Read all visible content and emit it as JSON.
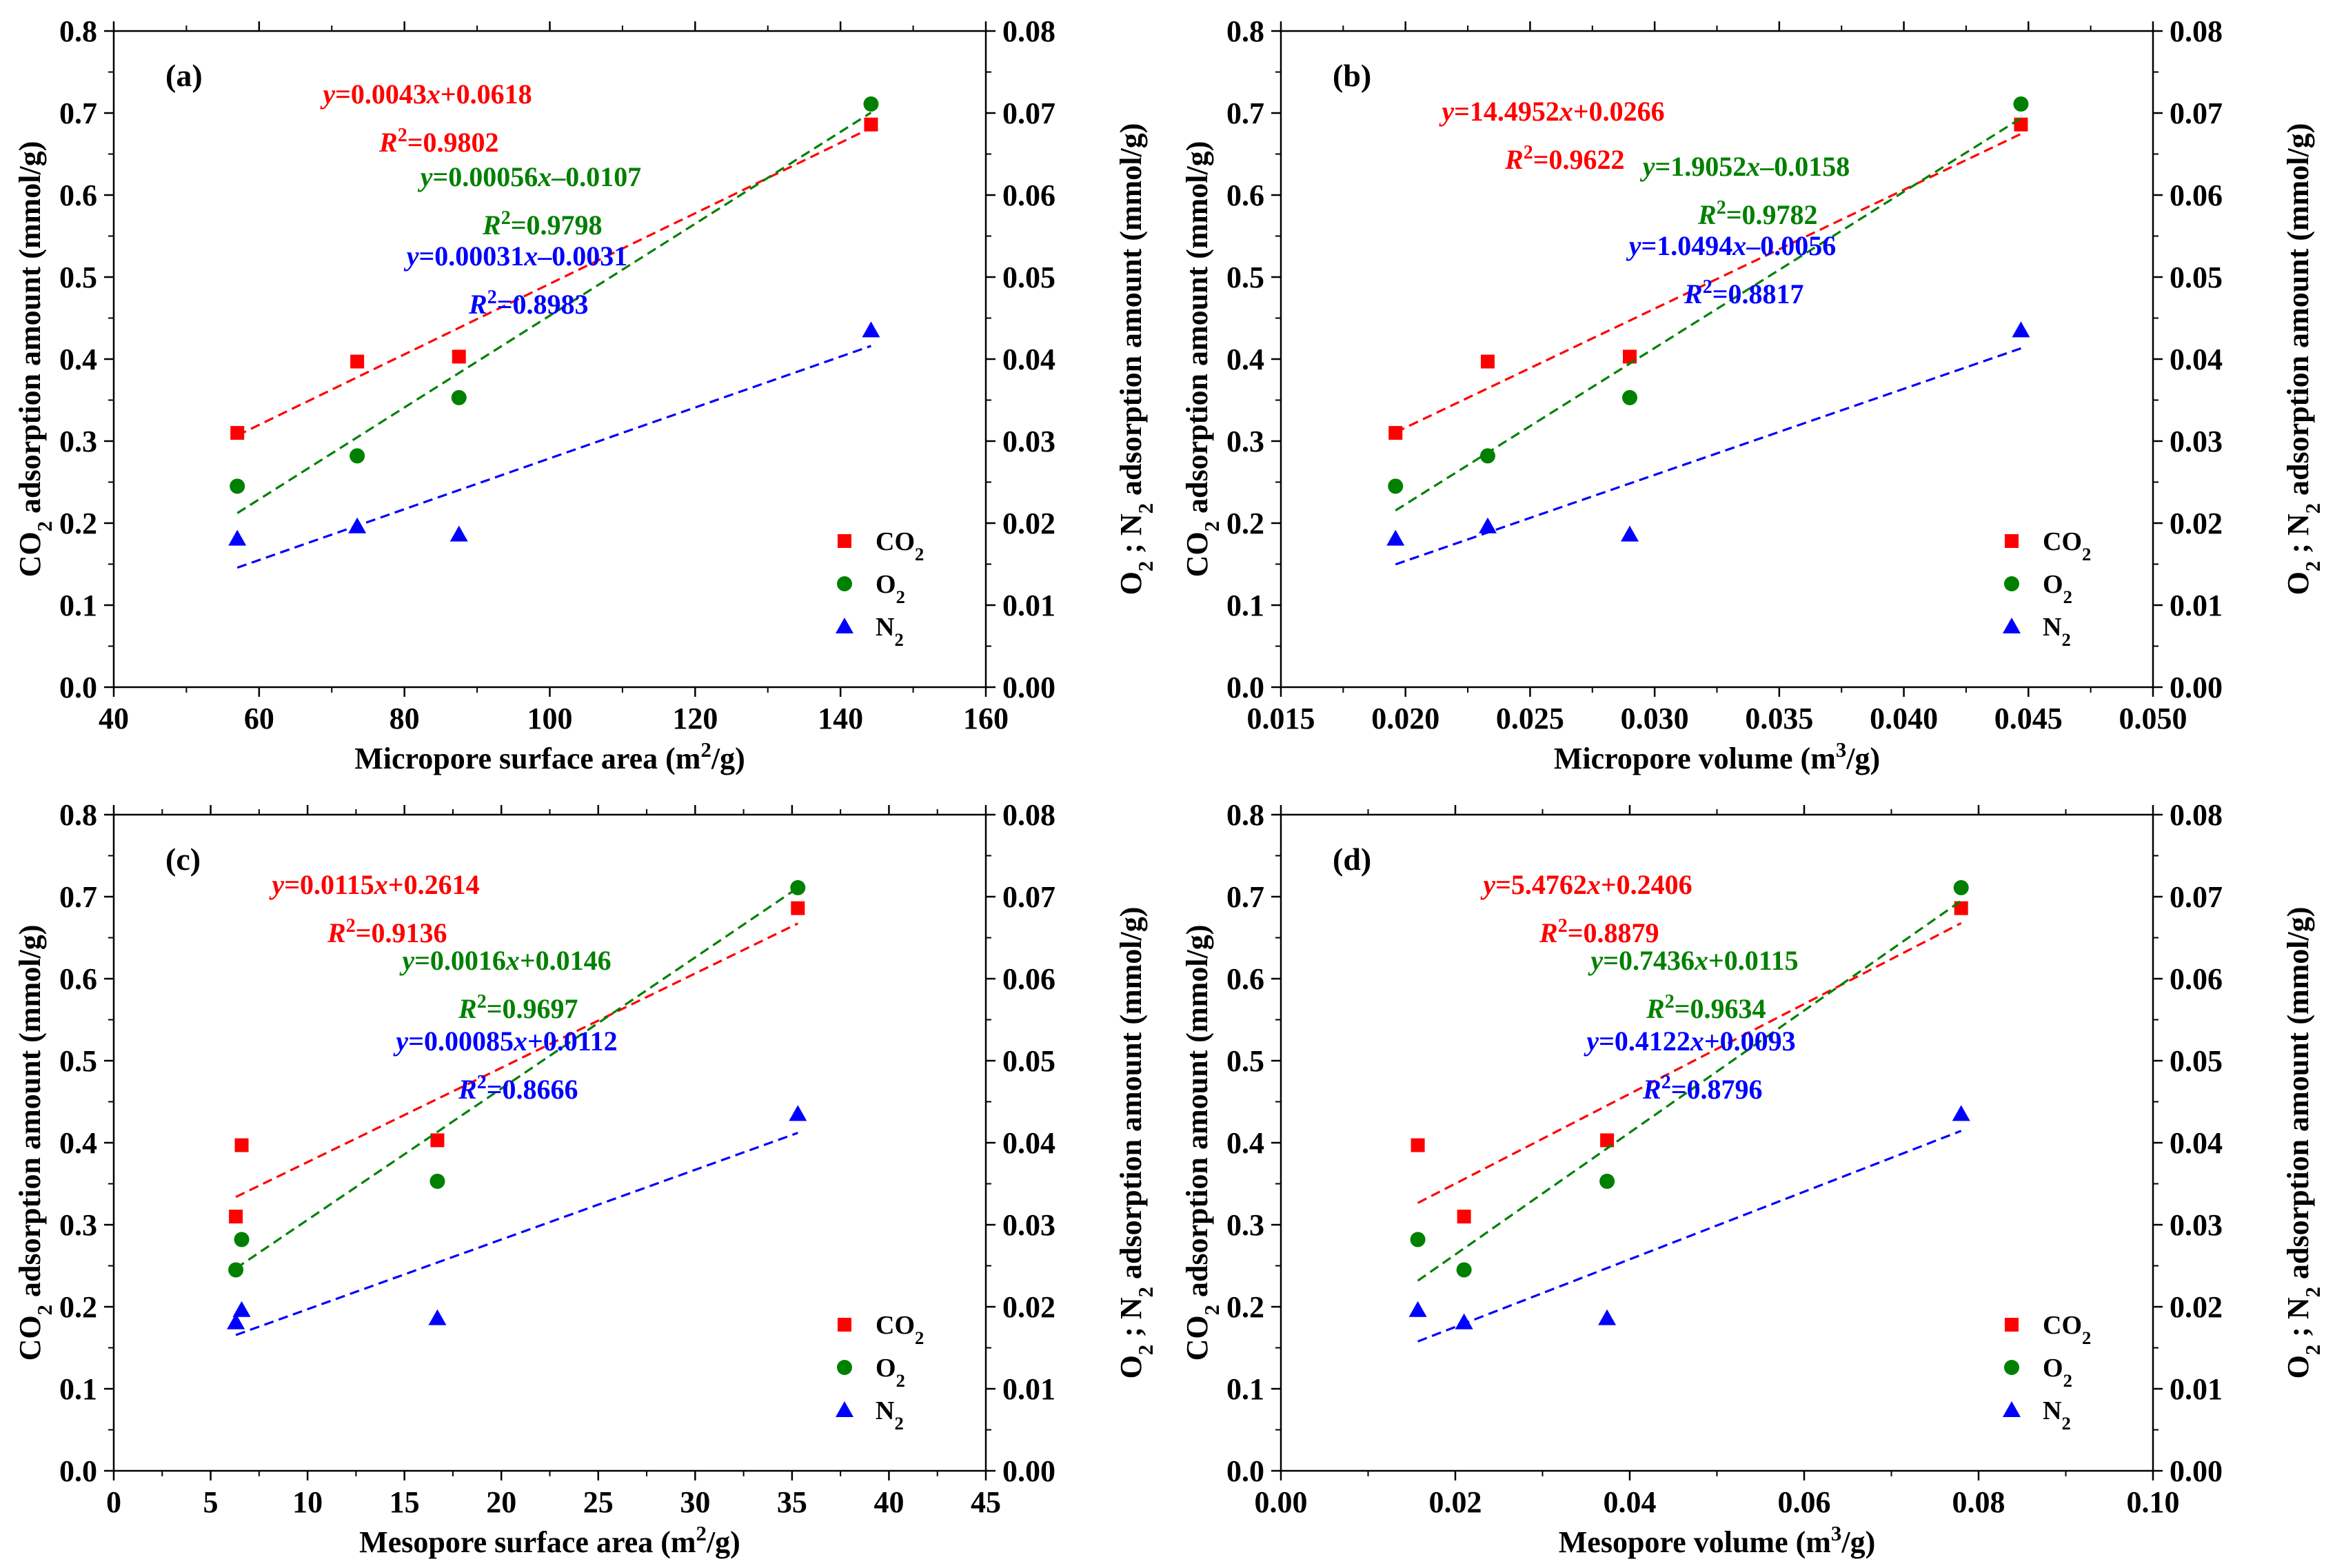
{
  "figure": {
    "colors": {
      "co2": "#ff0000",
      "o2": "#008000",
      "n2": "#0000ff",
      "axis": "#000000"
    },
    "legend": {
      "co2": "CO2",
      "o2": "O2",
      "n2": "N2",
      "placement": "bottom-right"
    },
    "marker_shapes": {
      "co2": "square",
      "o2": "circle",
      "n2": "triangle"
    }
  },
  "chart_data": [
    {
      "type": "scatter",
      "panel_label": "(a)",
      "xlabel": "Micropore surface area (m2/g)",
      "ylabel_left": "CO2 adsorption amount (mmol/g)",
      "ylabel_right": "O2 ; N2 adsorption amount (mmol/g)",
      "xlim": [
        40,
        160
      ],
      "xticks": [
        40,
        60,
        80,
        100,
        120,
        140,
        160
      ],
      "xtick_labels": [
        "40",
        "60",
        "80",
        "100",
        "120",
        "140",
        "160"
      ],
      "ylim_left": [
        0,
        0.8
      ],
      "ylim_right": [
        0,
        0.08
      ],
      "grid": false,
      "series": [
        {
          "name": "CO2",
          "axis": "left",
          "x": [
            57,
            73.5,
            87.5,
            144.2
          ],
          "y": [
            0.31,
            0.397,
            0.403,
            0.686
          ],
          "fit": {
            "slope": 0.0043,
            "intercept": 0.0618,
            "x_range": [
              57,
              144.2
            ]
          },
          "equation": "y=0.0043x+0.0618",
          "r2": "R2=0.9802"
        },
        {
          "name": "O2",
          "axis": "right",
          "x": [
            57,
            73.5,
            87.5,
            144.2
          ],
          "y": [
            0.0245,
            0.0282,
            0.0353,
            0.0711
          ],
          "fit": {
            "slope": 0.00056,
            "intercept": -0.0107,
            "x_range": [
              57,
              144.2
            ]
          },
          "equation": "y=0.00056x–0.0107",
          "r2": "R2=0.9798"
        },
        {
          "name": "N2",
          "axis": "right",
          "x": [
            57,
            73.5,
            87.5,
            144.2
          ],
          "y": [
            0.0181,
            0.0196,
            0.0186,
            0.0435
          ],
          "fit": {
            "slope": 0.00031,
            "intercept": -0.0031,
            "x_range": [
              57,
              144.2
            ]
          },
          "equation": "y=0.00031x–0.0031",
          "r2": "R2=0.8983"
        }
      ]
    },
    {
      "type": "scatter",
      "panel_label": "(b)",
      "xlabel": "Micropore volume (m3/g)",
      "ylabel_left": "CO2 adsorption amount (mmol/g)",
      "ylabel_right": "O2 ; N2 adsorption amount (mmol/g)",
      "xlim": [
        0.015,
        0.05
      ],
      "xticks": [
        0.015,
        0.02,
        0.025,
        0.03,
        0.035,
        0.04,
        0.045,
        0.05
      ],
      "xtick_labels": [
        "0.015",
        "0.020",
        "0.025",
        "0.030",
        "0.035",
        "0.040",
        "0.045",
        "0.050"
      ],
      "ylim_left": [
        0,
        0.8
      ],
      "ylim_right": [
        0,
        0.08
      ],
      "grid": false,
      "series": [
        {
          "name": "CO2",
          "axis": "left",
          "x": [
            0.0196,
            0.0233,
            0.029,
            0.0447
          ],
          "y": [
            0.31,
            0.397,
            0.403,
            0.686
          ],
          "fit": {
            "slope": 14.4952,
            "intercept": 0.0266,
            "x_range": [
              0.0196,
              0.0447
            ]
          },
          "equation": "y=14.4952x+0.0266",
          "r2": "R2=0.9622"
        },
        {
          "name": "O2",
          "axis": "right",
          "x": [
            0.0196,
            0.0233,
            0.029,
            0.0447
          ],
          "y": [
            0.0245,
            0.0282,
            0.0353,
            0.0711
          ],
          "fit": {
            "slope": 1.9052,
            "intercept": -0.0158,
            "x_range": [
              0.0196,
              0.0447
            ]
          },
          "equation": "y=1.9052x–0.0158",
          "r2": "R2=0.9782"
        },
        {
          "name": "N2",
          "axis": "right",
          "x": [
            0.0196,
            0.0233,
            0.029,
            0.0447
          ],
          "y": [
            0.0181,
            0.0196,
            0.0186,
            0.0435
          ],
          "fit": {
            "slope": 1.0494,
            "intercept": -0.0056,
            "x_range": [
              0.0196,
              0.0447
            ]
          },
          "equation": "y=1.0494x–0.0056",
          "r2": "R2=0.8817"
        }
      ]
    },
    {
      "type": "scatter",
      "panel_label": "(c)",
      "xlabel": "Mesopore surface area (m2/g)",
      "ylabel_left": "CO2 adsorption amount (mmol/g)",
      "ylabel_right": "O2 ; N2 adsorption amount (mmol/g)",
      "xlim": [
        0,
        45
      ],
      "xticks": [
        0,
        5,
        10,
        15,
        20,
        25,
        30,
        35,
        40,
        45
      ],
      "xtick_labels": [
        "0",
        "5",
        "10",
        "15",
        "20",
        "25",
        "30",
        "35",
        "40",
        "45"
      ],
      "ylim_left": [
        0,
        0.8
      ],
      "ylim_right": [
        0,
        0.08
      ],
      "grid": false,
      "series": [
        {
          "name": "CO2",
          "axis": "left",
          "x": [
            6.3,
            6.6,
            16.7,
            35.3
          ],
          "y": [
            0.31,
            0.397,
            0.403,
            0.686
          ],
          "fit": {
            "slope": 0.0115,
            "intercept": 0.2614,
            "x_range": [
              6.3,
              35.3
            ]
          },
          "equation": "y=0.0115x+0.2614",
          "r2": "R2=0.9136"
        },
        {
          "name": "O2",
          "axis": "right",
          "x": [
            6.3,
            6.6,
            16.7,
            35.3
          ],
          "y": [
            0.0245,
            0.0282,
            0.0353,
            0.0711
          ],
          "fit": {
            "slope": 0.0016,
            "intercept": 0.0146,
            "x_range": [
              6.3,
              35.3
            ]
          },
          "equation": "y=0.0016x+0.0146",
          "r2": "R2=0.9697"
        },
        {
          "name": "N2",
          "axis": "right",
          "x": [
            6.3,
            6.6,
            16.7,
            35.3
          ],
          "y": [
            0.0181,
            0.0196,
            0.0186,
            0.0435
          ],
          "fit": {
            "slope": 0.00085,
            "intercept": 0.0112,
            "x_range": [
              6.3,
              35.3
            ]
          },
          "equation": "y=0.00085x+0.0112",
          "r2": "R2=0.8666"
        }
      ]
    },
    {
      "type": "scatter",
      "panel_label": "(d)",
      "xlabel": "Mesopore volume (m3/g)",
      "ylabel_left": "CO2 adsorption amount (mmol/g)",
      "ylabel_right": "O2 ; N2 adsorption amount (mmol/g)",
      "xlim": [
        0,
        0.1
      ],
      "xticks": [
        0,
        0.02,
        0.04,
        0.06,
        0.08,
        0.1
      ],
      "xtick_labels": [
        "0.00",
        "0.02",
        "0.04",
        "0.06",
        "0.08",
        "0.10"
      ],
      "ylim_left": [
        0,
        0.8
      ],
      "ylim_right": [
        0,
        0.08
      ],
      "grid": false,
      "series": [
        {
          "name": "CO2",
          "axis": "left",
          "x": [
            0.0157,
            0.021,
            0.0374,
            0.078
          ],
          "y": [
            0.397,
            0.31,
            0.403,
            0.686
          ],
          "fit": {
            "slope": 5.4762,
            "intercept": 0.2406,
            "x_range": [
              0.0157,
              0.078
            ]
          },
          "equation": "y=5.4762x+0.2406",
          "r2": "R2=0.8879"
        },
        {
          "name": "O2",
          "axis": "right",
          "x": [
            0.0157,
            0.021,
            0.0374,
            0.078
          ],
          "y": [
            0.0282,
            0.0245,
            0.0353,
            0.0711
          ],
          "fit": {
            "slope": 0.7436,
            "intercept": 0.0115,
            "x_range": [
              0.0157,
              0.078
            ]
          },
          "equation": "y=0.7436x+0.0115",
          "r2": "R2=0.9634"
        },
        {
          "name": "N2",
          "axis": "right",
          "x": [
            0.0157,
            0.021,
            0.0374,
            0.078
          ],
          "y": [
            0.0196,
            0.0181,
            0.0186,
            0.0435
          ],
          "fit": {
            "slope": 0.4122,
            "intercept": 0.0093,
            "x_range": [
              0.0157,
              0.078
            ]
          },
          "equation": "y=0.4122x+0.0093",
          "r2": "R2=0.8796"
        }
      ]
    }
  ]
}
